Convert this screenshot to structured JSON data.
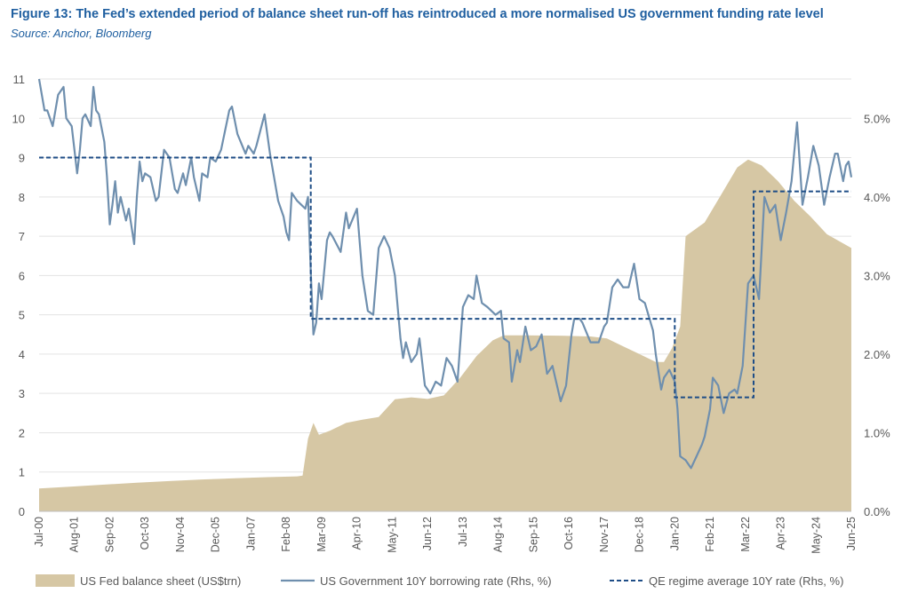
{
  "title": "Figure 13: The Fed’s extended period of balance sheet run-off has reintroduced a more normalised US government funding rate level",
  "subtitle": "Source: Anchor, Bloomberg",
  "colors": {
    "area": "#d6c7a4",
    "rate_line": "#6f8fae",
    "regime_line": "#1f4e87",
    "title": "#1f5fa0",
    "axis_text": "#595959"
  },
  "chart_data": {
    "type": "area",
    "x_range": [
      "2000-07",
      "2025-06"
    ],
    "x_tick_labels": [
      "Jul-00",
      "Aug-01",
      "Sep-02",
      "Oct-03",
      "Nov-04",
      "Dec-05",
      "Jan-07",
      "Feb-08",
      "Mar-09",
      "Apr-10",
      "May-11",
      "Jun-12",
      "Jul-13",
      "Aug-14",
      "Sep-15",
      "Oct-16",
      "Nov-17",
      "Dec-18",
      "Jan-20",
      "Feb-21",
      "Mar-22",
      "Apr-23",
      "May-24",
      "Jun-25"
    ],
    "y_left": {
      "min": 0,
      "max": 11,
      "ticks": [
        "0",
        "1",
        "2",
        "3",
        "4",
        "5",
        "6",
        "7",
        "8",
        "9",
        "10",
        "11"
      ]
    },
    "y_right": {
      "min": 0,
      "max": 5.5,
      "ticks": [
        "0.0%",
        "1.0%",
        "2.0%",
        "3.0%",
        "4.0%",
        "5.0%"
      ]
    },
    "grid": "horizontal",
    "legend_position": "bottom",
    "series": [
      {
        "name": "US Fed balance sheet (US$trn)",
        "axis": "left",
        "kind": "area",
        "points": [
          [
            "2000-07",
            0.58
          ],
          [
            "2001-07",
            0.63
          ],
          [
            "2002-07",
            0.68
          ],
          [
            "2003-07",
            0.73
          ],
          [
            "2004-07",
            0.77
          ],
          [
            "2005-07",
            0.81
          ],
          [
            "2006-07",
            0.84
          ],
          [
            "2007-07",
            0.87
          ],
          [
            "2008-06",
            0.89
          ],
          [
            "2008-08",
            0.91
          ],
          [
            "2008-10",
            1.85
          ],
          [
            "2008-12",
            2.25
          ],
          [
            "2009-02",
            1.95
          ],
          [
            "2009-06",
            2.05
          ],
          [
            "2009-12",
            2.25
          ],
          [
            "2010-06",
            2.33
          ],
          [
            "2010-12",
            2.4
          ],
          [
            "2011-06",
            2.85
          ],
          [
            "2011-12",
            2.9
          ],
          [
            "2012-06",
            2.86
          ],
          [
            "2012-12",
            2.95
          ],
          [
            "2013-06",
            3.4
          ],
          [
            "2013-12",
            3.95
          ],
          [
            "2014-06",
            4.35
          ],
          [
            "2014-10",
            4.48
          ],
          [
            "2015-06",
            4.48
          ],
          [
            "2016-06",
            4.47
          ],
          [
            "2017-06",
            4.45
          ],
          [
            "2017-12",
            4.4
          ],
          [
            "2018-06",
            4.2
          ],
          [
            "2018-12",
            4.0
          ],
          [
            "2019-06",
            3.8
          ],
          [
            "2019-09",
            3.8
          ],
          [
            "2019-12",
            4.15
          ],
          [
            "2020-03",
            4.7
          ],
          [
            "2020-05",
            7.0
          ],
          [
            "2020-12",
            7.35
          ],
          [
            "2021-06",
            8.05
          ],
          [
            "2021-12",
            8.75
          ],
          [
            "2022-04",
            8.95
          ],
          [
            "2022-09",
            8.8
          ],
          [
            "2023-03",
            8.4
          ],
          [
            "2023-09",
            7.9
          ],
          [
            "2024-03",
            7.5
          ],
          [
            "2024-09",
            7.05
          ],
          [
            "2025-06",
            6.7
          ]
        ]
      },
      {
        "name": "US Government 10Y borrowing rate (Rhs, %)",
        "axis": "right",
        "kind": "line",
        "points": [
          [
            "2000-07",
            5.5
          ],
          [
            "2000-09",
            5.1
          ],
          [
            "2000-10",
            5.1
          ],
          [
            "2000-12",
            4.9
          ],
          [
            "2001-02",
            5.3
          ],
          [
            "2001-03",
            5.35
          ],
          [
            "2001-04",
            5.4
          ],
          [
            "2001-05",
            5.0
          ],
          [
            "2001-07",
            4.9
          ],
          [
            "2001-09",
            4.3
          ],
          [
            "2001-10",
            4.6
          ],
          [
            "2001-11",
            5.0
          ],
          [
            "2001-12",
            5.05
          ],
          [
            "2002-02",
            4.9
          ],
          [
            "2002-03",
            5.4
          ],
          [
            "2002-04",
            5.1
          ],
          [
            "2002-05",
            5.05
          ],
          [
            "2002-07",
            4.7
          ],
          [
            "2002-08",
            4.25
          ],
          [
            "2002-09",
            3.65
          ],
          [
            "2002-10",
            3.9
          ],
          [
            "2002-11",
            4.2
          ],
          [
            "2002-12",
            3.8
          ],
          [
            "2003-01",
            4.0
          ],
          [
            "2003-03",
            3.7
          ],
          [
            "2003-04",
            3.85
          ],
          [
            "2003-06",
            3.4
          ],
          [
            "2003-07",
            4.0
          ],
          [
            "2003-08",
            4.45
          ],
          [
            "2003-09",
            4.2
          ],
          [
            "2003-10",
            4.3
          ],
          [
            "2003-12",
            4.25
          ],
          [
            "2004-02",
            3.95
          ],
          [
            "2004-03",
            4.0
          ],
          [
            "2004-05",
            4.6
          ],
          [
            "2004-07",
            4.5
          ],
          [
            "2004-09",
            4.1
          ],
          [
            "2004-10",
            4.05
          ],
          [
            "2004-12",
            4.3
          ],
          [
            "2005-01",
            4.15
          ],
          [
            "2005-03",
            4.5
          ],
          [
            "2005-04",
            4.25
          ],
          [
            "2005-06",
            3.95
          ],
          [
            "2005-07",
            4.3
          ],
          [
            "2005-09",
            4.25
          ],
          [
            "2005-10",
            4.5
          ],
          [
            "2005-12",
            4.45
          ],
          [
            "2006-02",
            4.6
          ],
          [
            "2006-05",
            5.1
          ],
          [
            "2006-06",
            5.15
          ],
          [
            "2006-08",
            4.8
          ],
          [
            "2006-11",
            4.55
          ],
          [
            "2006-12",
            4.65
          ],
          [
            "2007-02",
            4.55
          ],
          [
            "2007-03",
            4.65
          ],
          [
            "2007-06",
            5.05
          ],
          [
            "2007-08",
            4.55
          ],
          [
            "2007-11",
            3.95
          ],
          [
            "2008-01",
            3.75
          ],
          [
            "2008-02",
            3.55
          ],
          [
            "2008-03",
            3.45
          ],
          [
            "2008-04",
            4.05
          ],
          [
            "2008-06",
            3.95
          ],
          [
            "2008-09",
            3.85
          ],
          [
            "2008-10",
            4.0
          ],
          [
            "2008-11",
            3.05
          ],
          [
            "2008-12",
            2.25
          ],
          [
            "2009-01",
            2.4
          ],
          [
            "2009-02",
            2.9
          ],
          [
            "2009-03",
            2.7
          ],
          [
            "2009-05",
            3.45
          ],
          [
            "2009-06",
            3.55
          ],
          [
            "2009-07",
            3.5
          ],
          [
            "2009-10",
            3.3
          ],
          [
            "2009-12",
            3.8
          ],
          [
            "2010-01",
            3.6
          ],
          [
            "2010-04",
            3.85
          ],
          [
            "2010-06",
            3.0
          ],
          [
            "2010-08",
            2.55
          ],
          [
            "2010-10",
            2.5
          ],
          [
            "2010-12",
            3.35
          ],
          [
            "2011-02",
            3.5
          ],
          [
            "2011-04",
            3.35
          ],
          [
            "2011-06",
            3.0
          ],
          [
            "2011-08",
            2.2
          ],
          [
            "2011-09",
            1.95
          ],
          [
            "2011-10",
            2.15
          ],
          [
            "2011-12",
            1.9
          ],
          [
            "2012-02",
            2.0
          ],
          [
            "2012-03",
            2.2
          ],
          [
            "2012-05",
            1.6
          ],
          [
            "2012-07",
            1.5
          ],
          [
            "2012-09",
            1.65
          ],
          [
            "2012-11",
            1.6
          ],
          [
            "2013-01",
            1.95
          ],
          [
            "2013-03",
            1.85
          ],
          [
            "2013-05",
            1.65
          ],
          [
            "2013-07",
            2.6
          ],
          [
            "2013-09",
            2.75
          ],
          [
            "2013-11",
            2.7
          ],
          [
            "2013-12",
            3.0
          ],
          [
            "2014-02",
            2.65
          ],
          [
            "2014-04",
            2.6
          ],
          [
            "2014-07",
            2.5
          ],
          [
            "2014-09",
            2.55
          ],
          [
            "2014-10",
            2.2
          ],
          [
            "2014-12",
            2.15
          ],
          [
            "2015-01",
            1.65
          ],
          [
            "2015-03",
            2.05
          ],
          [
            "2015-04",
            1.9
          ],
          [
            "2015-06",
            2.35
          ],
          [
            "2015-08",
            2.05
          ],
          [
            "2015-10",
            2.1
          ],
          [
            "2015-12",
            2.25
          ],
          [
            "2016-02",
            1.75
          ],
          [
            "2016-04",
            1.85
          ],
          [
            "2016-07",
            1.4
          ],
          [
            "2016-09",
            1.6
          ],
          [
            "2016-11",
            2.25
          ],
          [
            "2016-12",
            2.45
          ],
          [
            "2017-02",
            2.45
          ],
          [
            "2017-03",
            2.4
          ],
          [
            "2017-06",
            2.15
          ],
          [
            "2017-09",
            2.15
          ],
          [
            "2017-11",
            2.35
          ],
          [
            "2017-12",
            2.4
          ],
          [
            "2018-02",
            2.85
          ],
          [
            "2018-04",
            2.95
          ],
          [
            "2018-06",
            2.85
          ],
          [
            "2018-08",
            2.85
          ],
          [
            "2018-10",
            3.15
          ],
          [
            "2018-12",
            2.7
          ],
          [
            "2019-02",
            2.65
          ],
          [
            "2019-05",
            2.3
          ],
          [
            "2019-06",
            2.0
          ],
          [
            "2019-08",
            1.55
          ],
          [
            "2019-09",
            1.7
          ],
          [
            "2019-11",
            1.8
          ],
          [
            "2020-01",
            1.65
          ],
          [
            "2020-02",
            1.3
          ],
          [
            "2020-03",
            0.7
          ],
          [
            "2020-05",
            0.65
          ],
          [
            "2020-07",
            0.55
          ],
          [
            "2020-09",
            0.7
          ],
          [
            "2020-11",
            0.85
          ],
          [
            "2020-12",
            0.95
          ],
          [
            "2021-02",
            1.3
          ],
          [
            "2021-03",
            1.7
          ],
          [
            "2021-05",
            1.6
          ],
          [
            "2021-07",
            1.25
          ],
          [
            "2021-09",
            1.5
          ],
          [
            "2021-11",
            1.55
          ],
          [
            "2021-12",
            1.5
          ],
          [
            "2022-02",
            1.85
          ],
          [
            "2022-04",
            2.9
          ],
          [
            "2022-06",
            3.0
          ],
          [
            "2022-08",
            2.7
          ],
          [
            "2022-10",
            4.0
          ],
          [
            "2022-12",
            3.8
          ],
          [
            "2023-02",
            3.9
          ],
          [
            "2023-04",
            3.45
          ],
          [
            "2023-06",
            3.8
          ],
          [
            "2023-08",
            4.2
          ],
          [
            "2023-10",
            4.95
          ],
          [
            "2023-12",
            3.9
          ],
          [
            "2024-02",
            4.25
          ],
          [
            "2024-04",
            4.65
          ],
          [
            "2024-06",
            4.4
          ],
          [
            "2024-08",
            3.9
          ],
          [
            "2024-10",
            4.25
          ],
          [
            "2024-12",
            4.55
          ],
          [
            "2025-01",
            4.55
          ],
          [
            "2025-03",
            4.2
          ],
          [
            "2025-04",
            4.4
          ],
          [
            "2025-05",
            4.45
          ],
          [
            "2025-06",
            4.25
          ]
        ]
      },
      {
        "name": "QE regime average 10Y rate (Rhs, %)",
        "axis": "right",
        "kind": "step",
        "style": "dashed",
        "points": [
          [
            "2000-07",
            4.5
          ],
          [
            "2008-11",
            4.5
          ],
          [
            "2008-11",
            2.45
          ],
          [
            "2020-01",
            2.45
          ],
          [
            "2020-01",
            1.45
          ],
          [
            "2022-06",
            1.45
          ],
          [
            "2022-06",
            4.07
          ],
          [
            "2025-06",
            4.07
          ]
        ]
      }
    ]
  }
}
